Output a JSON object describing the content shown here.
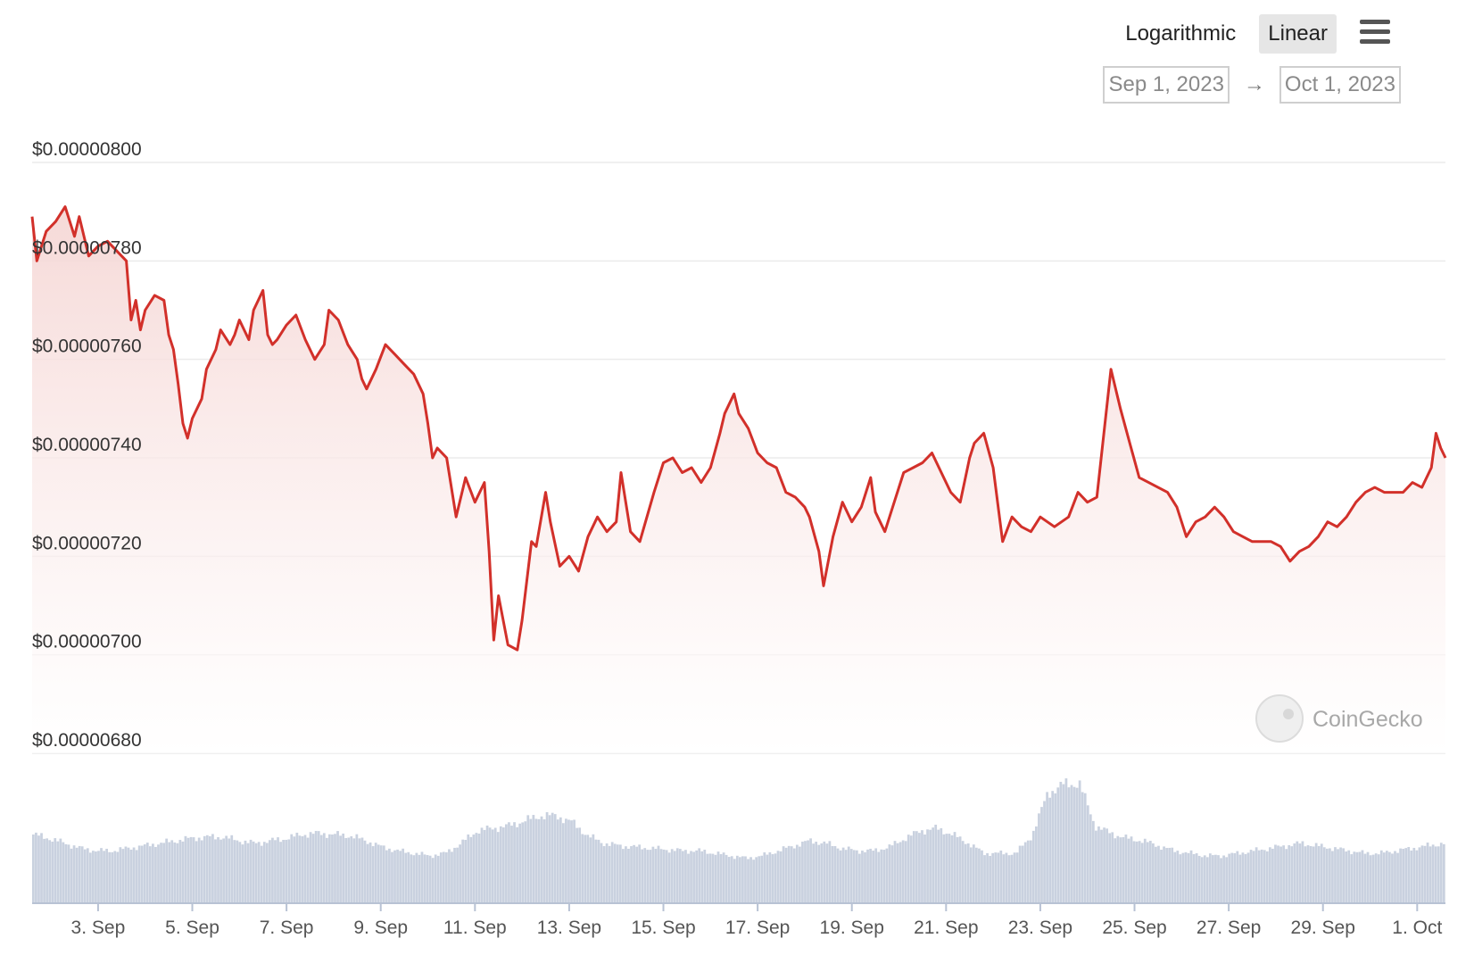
{
  "controls": {
    "scale_options": [
      "Logarithmic",
      "Linear"
    ],
    "selected_scale": "Linear",
    "range_start": "Sep 1, 2023",
    "range_arrow": "→",
    "range_end": "Oct 1, 2023"
  },
  "watermark": {
    "text": "CoinGecko",
    "color": "#a8a8a8"
  },
  "colors": {
    "line": "#d2302a",
    "area_top": "#f5d5d3",
    "volume": "#c9d1df",
    "grid": "#ebebeb"
  },
  "chart_data": {
    "type": "area",
    "xlabel": "",
    "ylabel": "",
    "ylim": [
      6.8e-06,
      8e-06
    ],
    "x_tick_labels": [
      "3. Sep",
      "5. Sep",
      "7. Sep",
      "9. Sep",
      "11. Sep",
      "13. Sep",
      "15. Sep",
      "17. Sep",
      "19. Sep",
      "21. Sep",
      "23. Sep",
      "25. Sep",
      "27. Sep",
      "29. Sep",
      "1. Oct"
    ],
    "y_tick_labels": [
      "$0.00000800",
      "$0.00000780",
      "$0.00000760",
      "$0.00000740",
      "$0.00000720",
      "$0.00000700",
      "$0.00000680"
    ],
    "y_tick_values": [
      8e-06,
      7.8e-06,
      7.6e-06,
      7.4e-06,
      7.2e-06,
      7e-06,
      6.8e-06
    ],
    "x_day_range": [
      1.6,
      31.6
    ],
    "series": [
      {
        "type": "area",
        "points": [
          [
            1.6,
            7.89
          ],
          [
            1.7,
            7.8
          ],
          [
            1.9,
            7.86
          ],
          [
            2.1,
            7.88
          ],
          [
            2.3,
            7.91
          ],
          [
            2.5,
            7.85
          ],
          [
            2.6,
            7.89
          ],
          [
            2.8,
            7.81
          ],
          [
            3.0,
            7.83
          ],
          [
            3.2,
            7.84
          ],
          [
            3.4,
            7.82
          ],
          [
            3.6,
            7.8
          ],
          [
            3.7,
            7.68
          ],
          [
            3.8,
            7.72
          ],
          [
            3.9,
            7.66
          ],
          [
            4.0,
            7.7
          ],
          [
            4.2,
            7.73
          ],
          [
            4.4,
            7.72
          ],
          [
            4.5,
            7.65
          ],
          [
            4.6,
            7.62
          ],
          [
            4.7,
            7.55
          ],
          [
            4.8,
            7.47
          ],
          [
            4.9,
            7.44
          ],
          [
            5.0,
            7.48
          ],
          [
            5.2,
            7.52
          ],
          [
            5.3,
            7.58
          ],
          [
            5.5,
            7.62
          ],
          [
            5.6,
            7.66
          ],
          [
            5.8,
            7.63
          ],
          [
            5.9,
            7.65
          ],
          [
            6.0,
            7.68
          ],
          [
            6.2,
            7.64
          ],
          [
            6.3,
            7.7
          ],
          [
            6.5,
            7.74
          ],
          [
            6.6,
            7.65
          ],
          [
            6.7,
            7.63
          ],
          [
            6.8,
            7.64
          ],
          [
            7.0,
            7.67
          ],
          [
            7.2,
            7.69
          ],
          [
            7.4,
            7.64
          ],
          [
            7.6,
            7.6
          ],
          [
            7.8,
            7.63
          ],
          [
            7.9,
            7.7
          ],
          [
            8.1,
            7.68
          ],
          [
            8.3,
            7.63
          ],
          [
            8.5,
            7.6
          ],
          [
            8.6,
            7.56
          ],
          [
            8.7,
            7.54
          ],
          [
            8.9,
            7.58
          ],
          [
            9.1,
            7.63
          ],
          [
            9.3,
            7.61
          ],
          [
            9.5,
            7.59
          ],
          [
            9.7,
            7.57
          ],
          [
            9.9,
            7.53
          ],
          [
            10.0,
            7.47
          ],
          [
            10.1,
            7.4
          ],
          [
            10.2,
            7.42
          ],
          [
            10.4,
            7.4
          ],
          [
            10.6,
            7.28
          ],
          [
            10.8,
            7.36
          ],
          [
            11.0,
            7.31
          ],
          [
            11.2,
            7.35
          ],
          [
            11.3,
            7.21
          ],
          [
            11.4,
            7.03
          ],
          [
            11.5,
            7.12
          ],
          [
            11.7,
            7.02
          ],
          [
            11.9,
            7.01
          ],
          [
            12.0,
            7.07
          ],
          [
            12.2,
            7.23
          ],
          [
            12.3,
            7.22
          ],
          [
            12.5,
            7.33
          ],
          [
            12.6,
            7.27
          ],
          [
            12.8,
            7.18
          ],
          [
            13.0,
            7.2
          ],
          [
            13.2,
            7.17
          ],
          [
            13.4,
            7.24
          ],
          [
            13.6,
            7.28
          ],
          [
            13.8,
            7.25
          ],
          [
            14.0,
            7.27
          ],
          [
            14.1,
            7.37
          ],
          [
            14.3,
            7.25
          ],
          [
            14.5,
            7.23
          ],
          [
            14.8,
            7.33
          ],
          [
            15.0,
            7.39
          ],
          [
            15.2,
            7.4
          ],
          [
            15.4,
            7.37
          ],
          [
            15.6,
            7.38
          ],
          [
            15.8,
            7.35
          ],
          [
            16.0,
            7.38
          ],
          [
            16.2,
            7.45
          ],
          [
            16.3,
            7.49
          ],
          [
            16.5,
            7.53
          ],
          [
            16.6,
            7.49
          ],
          [
            16.8,
            7.46
          ],
          [
            17.0,
            7.41
          ],
          [
            17.2,
            7.39
          ],
          [
            17.4,
            7.38
          ],
          [
            17.6,
            7.33
          ],
          [
            17.8,
            7.32
          ],
          [
            18.0,
            7.3
          ],
          [
            18.1,
            7.28
          ],
          [
            18.3,
            7.21
          ],
          [
            18.4,
            7.14
          ],
          [
            18.6,
            7.24
          ],
          [
            18.8,
            7.31
          ],
          [
            19.0,
            7.27
          ],
          [
            19.2,
            7.3
          ],
          [
            19.4,
            7.36
          ],
          [
            19.5,
            7.29
          ],
          [
            19.7,
            7.25
          ],
          [
            19.9,
            7.31
          ],
          [
            20.1,
            7.37
          ],
          [
            20.3,
            7.38
          ],
          [
            20.5,
            7.39
          ],
          [
            20.7,
            7.41
          ],
          [
            20.9,
            7.37
          ],
          [
            21.1,
            7.33
          ],
          [
            21.3,
            7.31
          ],
          [
            21.5,
            7.4
          ],
          [
            21.6,
            7.43
          ],
          [
            21.8,
            7.45
          ],
          [
            22.0,
            7.38
          ],
          [
            22.2,
            7.23
          ],
          [
            22.4,
            7.28
          ],
          [
            22.6,
            7.26
          ],
          [
            22.8,
            7.25
          ],
          [
            23.0,
            7.28
          ],
          [
            23.3,
            7.26
          ],
          [
            23.6,
            7.28
          ],
          [
            23.8,
            7.33
          ],
          [
            24.0,
            7.31
          ],
          [
            24.2,
            7.32
          ],
          [
            24.5,
            7.58
          ],
          [
            24.7,
            7.5
          ],
          [
            24.9,
            7.43
          ],
          [
            25.1,
            7.36
          ],
          [
            25.3,
            7.35
          ],
          [
            25.5,
            7.34
          ],
          [
            25.7,
            7.33
          ],
          [
            25.9,
            7.3
          ],
          [
            26.1,
            7.24
          ],
          [
            26.3,
            7.27
          ],
          [
            26.5,
            7.28
          ],
          [
            26.7,
            7.3
          ],
          [
            26.9,
            7.28
          ],
          [
            27.1,
            7.25
          ],
          [
            27.3,
            7.24
          ],
          [
            27.5,
            7.23
          ],
          [
            27.7,
            7.23
          ],
          [
            27.9,
            7.23
          ],
          [
            28.1,
            7.22
          ],
          [
            28.3,
            7.19
          ],
          [
            28.5,
            7.21
          ],
          [
            28.7,
            7.22
          ],
          [
            28.9,
            7.24
          ],
          [
            29.1,
            7.27
          ],
          [
            29.3,
            7.26
          ],
          [
            29.5,
            7.28
          ],
          [
            29.7,
            7.31
          ],
          [
            29.9,
            7.33
          ],
          [
            30.1,
            7.34
          ],
          [
            30.3,
            7.33
          ],
          [
            30.5,
            7.33
          ],
          [
            30.7,
            7.33
          ],
          [
            30.9,
            7.35
          ],
          [
            31.1,
            7.34
          ],
          [
            31.3,
            7.38
          ],
          [
            31.4,
            7.45
          ],
          [
            31.5,
            7.42
          ],
          [
            31.6,
            7.4
          ]
        ],
        "unit_note": "price in units of 1e-6 USD"
      }
    ],
    "volume_relative": [
      0.55,
      0.52,
      0.48,
      0.44,
      0.42,
      0.42,
      0.44,
      0.46,
      0.48,
      0.5,
      0.52,
      0.53,
      0.53,
      0.5,
      0.48,
      0.5,
      0.52,
      0.55,
      0.56,
      0.55,
      0.54,
      0.5,
      0.45,
      0.42,
      0.4,
      0.38,
      0.4,
      0.48,
      0.58,
      0.6,
      0.62,
      0.66,
      0.7,
      0.7,
      0.65,
      0.54,
      0.48,
      0.46,
      0.45,
      0.44,
      0.43,
      0.42,
      0.42,
      0.4,
      0.38,
      0.36,
      0.38,
      0.42,
      0.46,
      0.5,
      0.48,
      0.44,
      0.42,
      0.42,
      0.45,
      0.52,
      0.58,
      0.6,
      0.55,
      0.48,
      0.4,
      0.4,
      0.4,
      0.54,
      0.88,
      0.95,
      0.96,
      0.62,
      0.56,
      0.52,
      0.5,
      0.46,
      0.42,
      0.4,
      0.38,
      0.38,
      0.4,
      0.42,
      0.44,
      0.46,
      0.48,
      0.46,
      0.44,
      0.42,
      0.4,
      0.4,
      0.42,
      0.44,
      0.46,
      0.48
    ]
  }
}
